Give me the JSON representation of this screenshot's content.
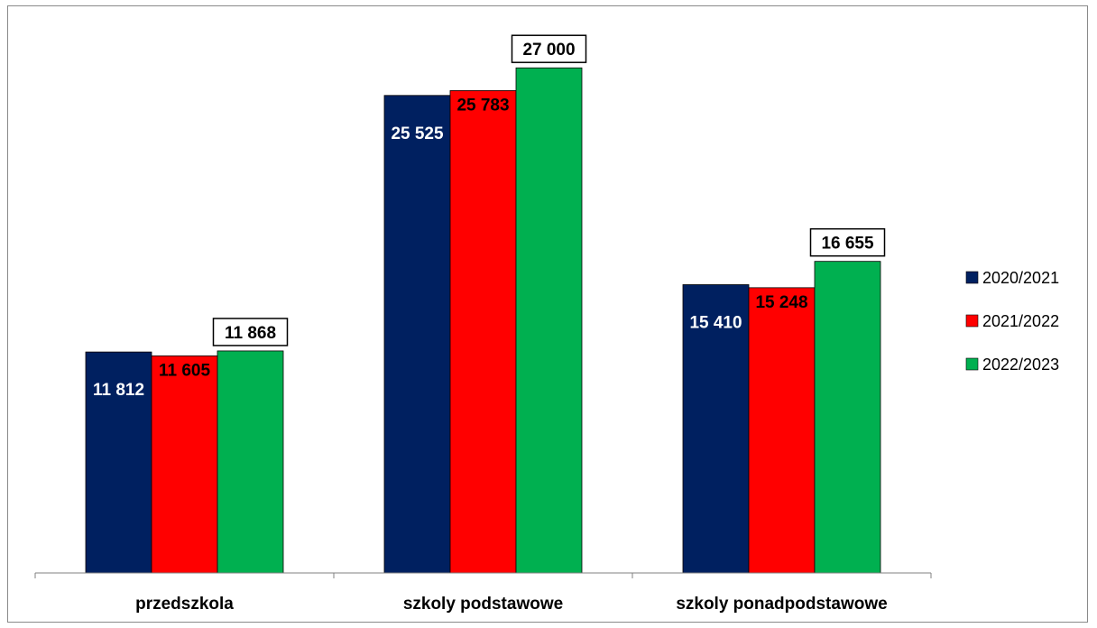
{
  "chart_data": {
    "type": "bar",
    "categories": [
      "przedszkola",
      "szkoly podstawowe",
      "szkoly ponadpodstawowe"
    ],
    "series": [
      {
        "name": "2020/2021",
        "color": "#002060",
        "values": [
          11812,
          25525,
          15410
        ],
        "labels": [
          "11 812",
          "25 525",
          "15 410"
        ]
      },
      {
        "name": "2021/2022",
        "color": "#ff0000",
        "values": [
          11605,
          25783,
          15248
        ],
        "labels": [
          "11 605",
          "25 783",
          "15 248"
        ]
      },
      {
        "name": "2022/2023",
        "color": "#00b050",
        "values": [
          11868,
          27000,
          16655
        ],
        "labels": [
          "11 868",
          "27 000",
          "16 655"
        ]
      }
    ],
    "ylim": [
      0,
      30000
    ],
    "legend_position": "right",
    "grid": false
  }
}
